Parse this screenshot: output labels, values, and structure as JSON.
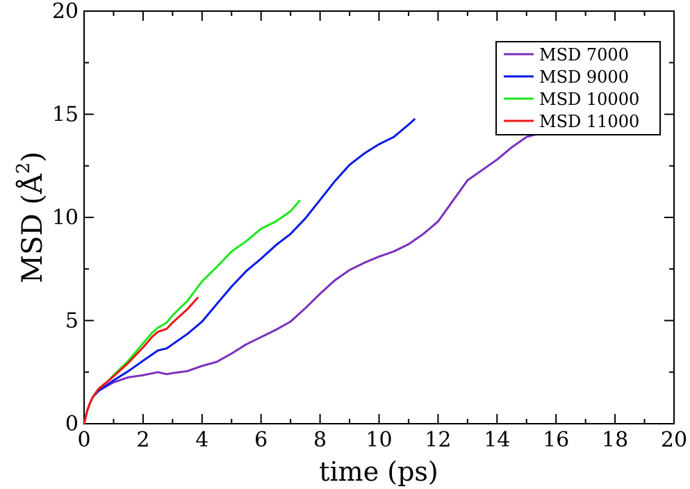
{
  "chart_data": {
    "type": "line",
    "title": "",
    "xlabel": "time (ps)",
    "ylabel": {
      "main": "MSD (",
      "unit": "Å",
      "exponent": "2",
      "close": ")"
    },
    "xlim": [
      0,
      20
    ],
    "ylim": [
      0,
      20
    ],
    "x_major_ticks": [
      0,
      2,
      4,
      6,
      8,
      10,
      12,
      14,
      16,
      18,
      20
    ],
    "y_major_ticks": [
      0,
      5,
      10,
      15,
      20
    ],
    "x_tick_labels": [
      "0",
      "2",
      "4",
      "6",
      "8",
      "10",
      "12",
      "14",
      "16",
      "18",
      "20"
    ],
    "y_tick_labels": [
      "0",
      "5",
      "10",
      "15",
      "20"
    ],
    "grid": false,
    "legend_position": "top-right",
    "series": [
      {
        "name": "MSD 7000",
        "color": "#7b2fbf",
        "x": [
          0,
          0.1,
          0.2,
          0.3,
          0.5,
          0.8,
          1.0,
          1.3,
          1.5,
          2.0,
          2.5,
          2.8,
          3.0,
          3.5,
          4.0,
          4.5,
          5.0,
          5.5,
          6.0,
          6.5,
          7.0,
          7.5,
          8.0,
          8.5,
          9.0,
          9.5,
          10.0,
          10.5,
          11.0,
          11.5,
          12.0,
          12.5,
          13.0,
          13.5,
          14.0,
          14.5,
          15.0,
          15.5
        ],
        "y": [
          0,
          0.6,
          1.0,
          1.3,
          1.6,
          1.85,
          2.0,
          2.15,
          2.25,
          2.35,
          2.5,
          2.4,
          2.45,
          2.55,
          2.8,
          3.0,
          3.4,
          3.85,
          4.2,
          4.55,
          4.95,
          5.6,
          6.3,
          6.95,
          7.45,
          7.8,
          8.1,
          8.35,
          8.7,
          9.2,
          9.8,
          10.8,
          11.8,
          12.3,
          12.8,
          13.4,
          13.9,
          14.1
        ]
      },
      {
        "name": "MSD 9000",
        "color": "#0a1ae6",
        "x": [
          0,
          0.1,
          0.2,
          0.3,
          0.5,
          0.8,
          1.0,
          1.5,
          2.0,
          2.5,
          2.8,
          3.0,
          3.5,
          4.0,
          4.5,
          5.0,
          5.5,
          6.0,
          6.5,
          7.0,
          7.5,
          8.0,
          8.5,
          9.0,
          9.5,
          10.0,
          10.5,
          11.0,
          11.2
        ],
        "y": [
          0,
          0.6,
          1.0,
          1.3,
          1.6,
          1.9,
          2.1,
          2.55,
          3.05,
          3.55,
          3.65,
          3.85,
          4.35,
          4.95,
          5.8,
          6.65,
          7.4,
          8.0,
          8.65,
          9.2,
          9.95,
          10.85,
          11.75,
          12.55,
          13.1,
          13.55,
          13.9,
          14.5,
          14.75
        ]
      },
      {
        "name": "MSD 10000",
        "color": "#1ee61e",
        "x": [
          0,
          0.1,
          0.2,
          0.3,
          0.5,
          0.8,
          1.0,
          1.5,
          2.0,
          2.3,
          2.5,
          2.8,
          3.0,
          3.5,
          4.0,
          4.5,
          5.0,
          5.5,
          6.0,
          6.5,
          7.0,
          7.3
        ],
        "y": [
          0,
          0.6,
          1.0,
          1.3,
          1.7,
          2.05,
          2.35,
          3.05,
          3.9,
          4.4,
          4.65,
          4.9,
          5.25,
          5.95,
          6.9,
          7.6,
          8.35,
          8.85,
          9.45,
          9.8,
          10.3,
          10.8
        ]
      },
      {
        "name": "MSD 11000",
        "color": "#f01414",
        "x": [
          0,
          0.1,
          0.2,
          0.3,
          0.5,
          0.8,
          1.0,
          1.5,
          2.0,
          2.3,
          2.5,
          2.8,
          3.0,
          3.5,
          3.85
        ],
        "y": [
          0,
          0.6,
          1.0,
          1.3,
          1.7,
          2.05,
          2.3,
          2.95,
          3.7,
          4.2,
          4.45,
          4.6,
          4.9,
          5.55,
          6.1
        ]
      }
    ]
  }
}
